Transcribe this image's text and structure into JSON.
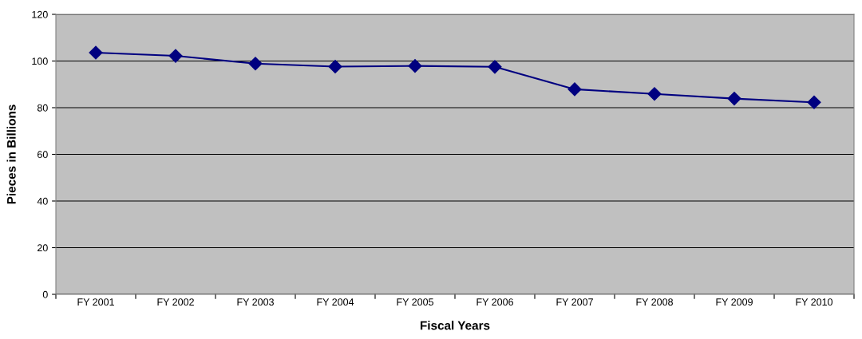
{
  "chart_data": {
    "type": "line",
    "xlabel": "Fiscal Years",
    "ylabel": "Pieces in Billions",
    "categories": [
      "FY 2001",
      "FY 2002",
      "FY 2003",
      "FY 2004",
      "FY 2005",
      "FY 2006",
      "FY 2007",
      "FY 2008",
      "FY 2009",
      "FY 2010"
    ],
    "series": [
      {
        "color": "#000080",
        "values": [
          103.6,
          102.2,
          98.9,
          97.6,
          97.9,
          97.5,
          87.9,
          85.9,
          83.9,
          82.3
        ]
      }
    ],
    "ylim": [
      0,
      120
    ],
    "yticks": [
      0,
      20,
      40,
      60,
      80,
      100,
      120
    ],
    "grid": "y",
    "marker": "diamond",
    "line_style": "solid"
  }
}
